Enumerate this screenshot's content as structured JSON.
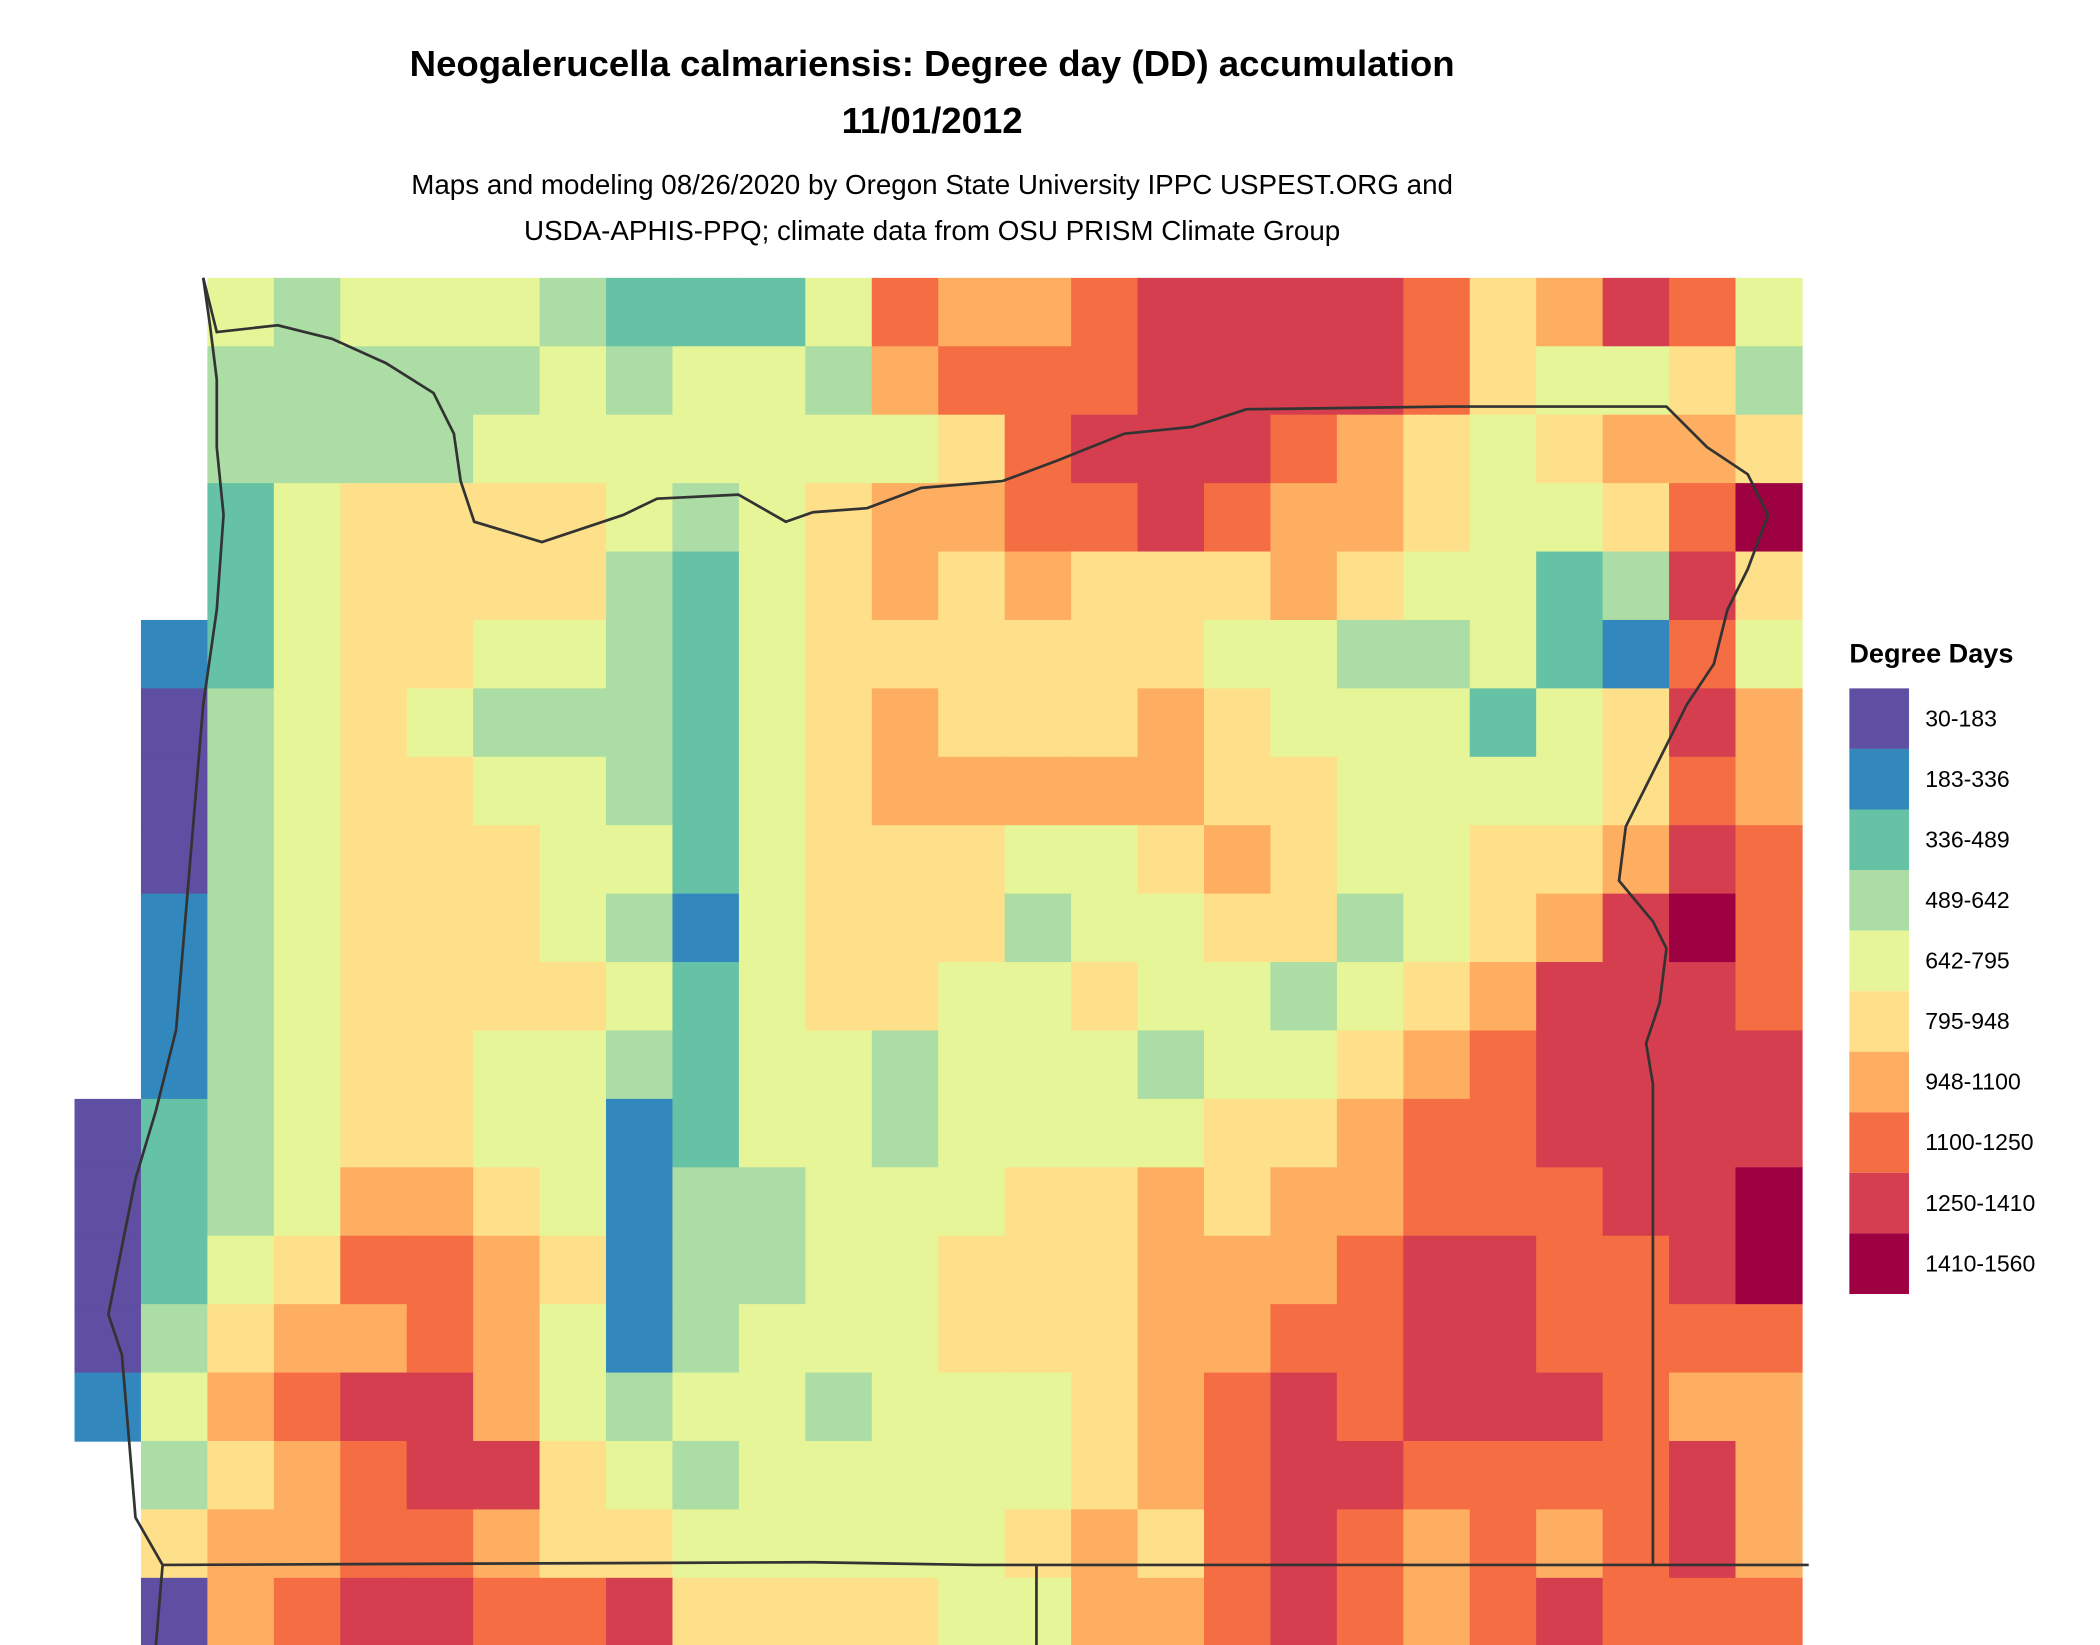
{
  "title": {
    "line1": "Neogalerucella calmariensis: Degree day (DD) accumulation",
    "line2": "11/01/2012"
  },
  "subtitle": {
    "line1": "Maps and modeling 08/26/2020 by Oregon State University IPPC USPEST.ORG and",
    "line2": "USDA-APHIS-PPQ; climate data from OSU PRISM Climate Group"
  },
  "legend": {
    "title": "Degree Days",
    "items": [
      {
        "label": "30-183",
        "color": "#5e4fa2"
      },
      {
        "label": "183-336",
        "color": "#3288bd"
      },
      {
        "label": "336-489",
        "color": "#66c2a5"
      },
      {
        "label": "489-642",
        "color": "#abdda4"
      },
      {
        "label": "642-795",
        "color": "#e6f598"
      },
      {
        "label": "795-948",
        "color": "#fee08b"
      },
      {
        "label": "948-1100",
        "color": "#fdae61"
      },
      {
        "label": "1100-1250",
        "color": "#f46d43"
      },
      {
        "label": "1250-1410",
        "color": "#d53e4f"
      },
      {
        "label": "1410-1560",
        "color": "#9e0142"
      }
    ]
  },
  "map": {
    "border_color": "#333333"
  }
}
